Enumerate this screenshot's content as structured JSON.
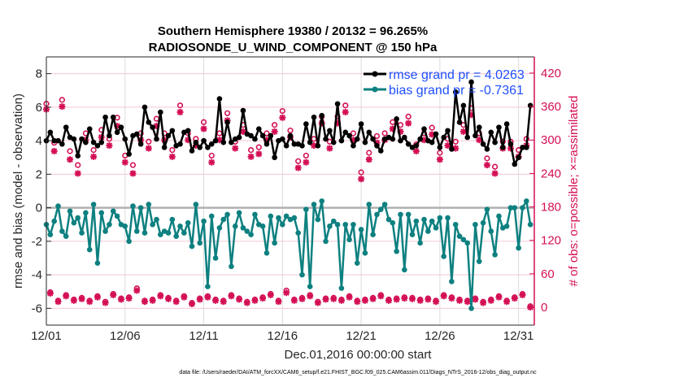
{
  "chart_data": {
    "type": "line",
    "title": [
      "Southern Hemisphere 19380 / 20132 = 96.265%",
      "RADIOSONDE_U_WIND_COMPONENT @ 150 hPa"
    ],
    "xlabel": "Dec.01,2016 00:00:00 start",
    "ylabel_left": "rmse and bias (model - observation)",
    "ylabel_right": "# of obs: o=possible; ×=assimilated",
    "footnote": "data file: /Users/raeder/DAI/ATM_forcXX/CAM6_setup/f.e21.FHIST_BGC.f09_025.CAM6assim.011/Diags_NTrS_2016-12/obs_diag_output.nc",
    "x_tick_labels": [
      "12/01",
      "12/06",
      "12/11",
      "12/16",
      "12/21",
      "12/26",
      "12/31"
    ],
    "x_tick_days": [
      0,
      5,
      10,
      15,
      20,
      25,
      30
    ],
    "xlim_days": [
      0,
      31
    ],
    "ylim_left": [
      -7,
      9
    ],
    "yticks_left": [
      -6,
      -4,
      -2,
      0,
      2,
      4,
      6,
      8
    ],
    "ylim_right": [
      -32,
      449
    ],
    "yticks_right": [
      0,
      60,
      120,
      180,
      240,
      300,
      360,
      420
    ],
    "grid": true,
    "legend_placement": "top-right",
    "legend": [
      "rmse grand pr = 4.0263",
      "bias grand pr = -0.7361"
    ],
    "x_step_days": 0.25,
    "series": [
      {
        "name": "rmse",
        "color": "#000000",
        "values": [
          4.0,
          4.5,
          4.0,
          4.0,
          3.8,
          4.8,
          4.2,
          4.1,
          3.1,
          4.1,
          3.9,
          4.7,
          3.9,
          3.7,
          3.9,
          5.4,
          4.3,
          5.4,
          4.5,
          4.8,
          4.1,
          3.2,
          4.3,
          4.4,
          3.8,
          6.0,
          5.1,
          4.8,
          4.1,
          5.7,
          3.6,
          4.3,
          4.6,
          3.7,
          3.8,
          4.5,
          4.6,
          3.4,
          3.9,
          3.6,
          4.0,
          3.6,
          3.8,
          4.0,
          6.5,
          3.9,
          5.1,
          3.9,
          4.1,
          4.2,
          5.8,
          4.4,
          4.3,
          4.1,
          4.7,
          4.3,
          3.8,
          4.3,
          3.0,
          4.0,
          4.1,
          3.7,
          4.3,
          3.8,
          3.8,
          3.7,
          5.0,
          3.9,
          5.4,
          3.7,
          5.5,
          4.1,
          4.6,
          3.9,
          6.2,
          4.0,
          4.5,
          4.3,
          3.7,
          4.1,
          5.0,
          3.9,
          4.5,
          4.1,
          3.7,
          3.4,
          4.1,
          4.2,
          4.1,
          5.3,
          4.0,
          4.2,
          3.8,
          3.6,
          3.7,
          4.1,
          4.7,
          4.0,
          3.9,
          4.4,
          3.6,
          4.2,
          4.6,
          3.5,
          6.9,
          5.1,
          6.1,
          4.2,
          7.5,
          4.3,
          4.8,
          3.8,
          3.5,
          4.5,
          3.9,
          4.8,
          3.6,
          5.0,
          3.8,
          2.6,
          3.0,
          3.6,
          3.6,
          6.1
        ]
      },
      {
        "name": "bias",
        "color": "#0e8080",
        "values": [
          -1.0,
          -1.6,
          -0.8,
          0.1,
          -1.4,
          -1.7,
          -0.2,
          -0.9,
          -0.6,
          -1.5,
          -0.3,
          -2.5,
          0.2,
          -3.3,
          -0.3,
          -1.4,
          -1.0,
          -0.2,
          -0.5,
          -1.0,
          -1.1,
          -2.0,
          0.1,
          -1.4,
          0.0,
          -1.5,
          0.2,
          -1.0,
          -0.7,
          -1.6,
          -1.4,
          -1.5,
          -0.7,
          -1.7,
          -1.1,
          -1.5,
          -0.9,
          -2.3,
          0.2,
          -2.1,
          -0.8,
          -4.7,
          -0.5,
          -3.0,
          -1.2,
          -0.7,
          -0.4,
          -3.5,
          -1.1,
          -0.3,
          -1.2,
          -1.4,
          -1.6,
          -0.4,
          -1.0,
          -1.1,
          -2.7,
          -0.5,
          -2.1,
          -0.6,
          -1.0,
          -0.5,
          -0.7,
          -0.6,
          -1.5,
          -4.0,
          -0.1,
          -4.7,
          0.2,
          -0.7,
          0.4,
          -2.0,
          -1.1,
          -0.8,
          -1.0,
          -4.8,
          -1.0,
          -1.9,
          -1.0,
          -3.3,
          -1.3,
          -2.7,
          0.2,
          -1.6,
          -0.4,
          -0.1,
          0.2,
          -0.7,
          -0.9,
          -2.6,
          -0.4,
          -3.7,
          -0.4,
          -1.6,
          -0.8,
          -2.1,
          -0.7,
          -1.4,
          -0.8,
          -1.2,
          -0.6,
          -2.9,
          -0.6,
          -4.4,
          -1.0,
          -1.7,
          -1.9,
          -2.1,
          -6.0,
          -1.0,
          -3.2,
          -0.9,
          -0.1,
          -1.4,
          -2.8,
          -0.5,
          -1.2,
          -1.1,
          0.0,
          0.0,
          -2.4,
          0.0,
          0.4,
          -1.0
        ]
      }
    ],
    "obs_counts": {
      "color": "#d40f55",
      "synoptic": {
        "x_start_days": 0,
        "x_step_days": 0.5,
        "possible": [
          365,
          295,
          372,
          280,
          255,
          312,
          282,
          318,
          302,
          340,
          272,
          255,
          312,
          297,
          338,
          312,
          282,
          362,
          312,
          302,
          332,
          272,
          312,
          348,
          297,
          327,
          282,
          287,
          312,
          327,
          352,
          317,
          262,
          272,
          302,
          342,
          297,
          342,
          362,
          312,
          242,
          277,
          307,
          312,
          332,
          327,
          342,
          292,
          312,
          322,
          277,
          302,
          297,
          327,
          357,
          312,
          267,
          252,
          297,
          297,
          282,
          302
        ],
        "assimilated": [
          355,
          280,
          360,
          265,
          240,
          300,
          270,
          305,
          290,
          325,
          260,
          240,
          300,
          285,
          325,
          300,
          270,
          350,
          300,
          290,
          320,
          260,
          300,
          335,
          285,
          315,
          270,
          275,
          300,
          315,
          340,
          305,
          250,
          260,
          290,
          330,
          285,
          330,
          350,
          300,
          230,
          265,
          295,
          300,
          320,
          315,
          330,
          280,
          300,
          310,
          265,
          290,
          285,
          315,
          345,
          300,
          255,
          240,
          285,
          285,
          270,
          290
        ]
      },
      "off_synoptic": {
        "x_start_days": 0.25,
        "x_step_days": 0.5,
        "possible": [
          27,
          12,
          22,
          14,
          17,
          12,
          20,
          10,
          24,
          16,
          18,
          34,
          12,
          14,
          22,
          17,
          12,
          20,
          8,
          16,
          20,
          14,
          12,
          22,
          16,
          10,
          14,
          18,
          24,
          12,
          30,
          14,
          17,
          22,
          10,
          16,
          17,
          14,
          20,
          12,
          14,
          17,
          22,
          14,
          16,
          18,
          17,
          14,
          16,
          12,
          22,
          18,
          14,
          12,
          16,
          10,
          14,
          20,
          12,
          18,
          24,
          2
        ],
        "assimilated": [
          25,
          10,
          20,
          12,
          15,
          10,
          18,
          8,
          22,
          14,
          16,
          30,
          10,
          12,
          20,
          15,
          10,
          18,
          6,
          14,
          18,
          12,
          10,
          20,
          14,
          8,
          12,
          16,
          22,
          10,
          26,
          12,
          15,
          20,
          8,
          14,
          15,
          12,
          18,
          10,
          12,
          15,
          20,
          12,
          14,
          16,
          15,
          12,
          14,
          10,
          20,
          16,
          12,
          10,
          14,
          8,
          12,
          18,
          10,
          16,
          22,
          0
        ]
      }
    }
  }
}
